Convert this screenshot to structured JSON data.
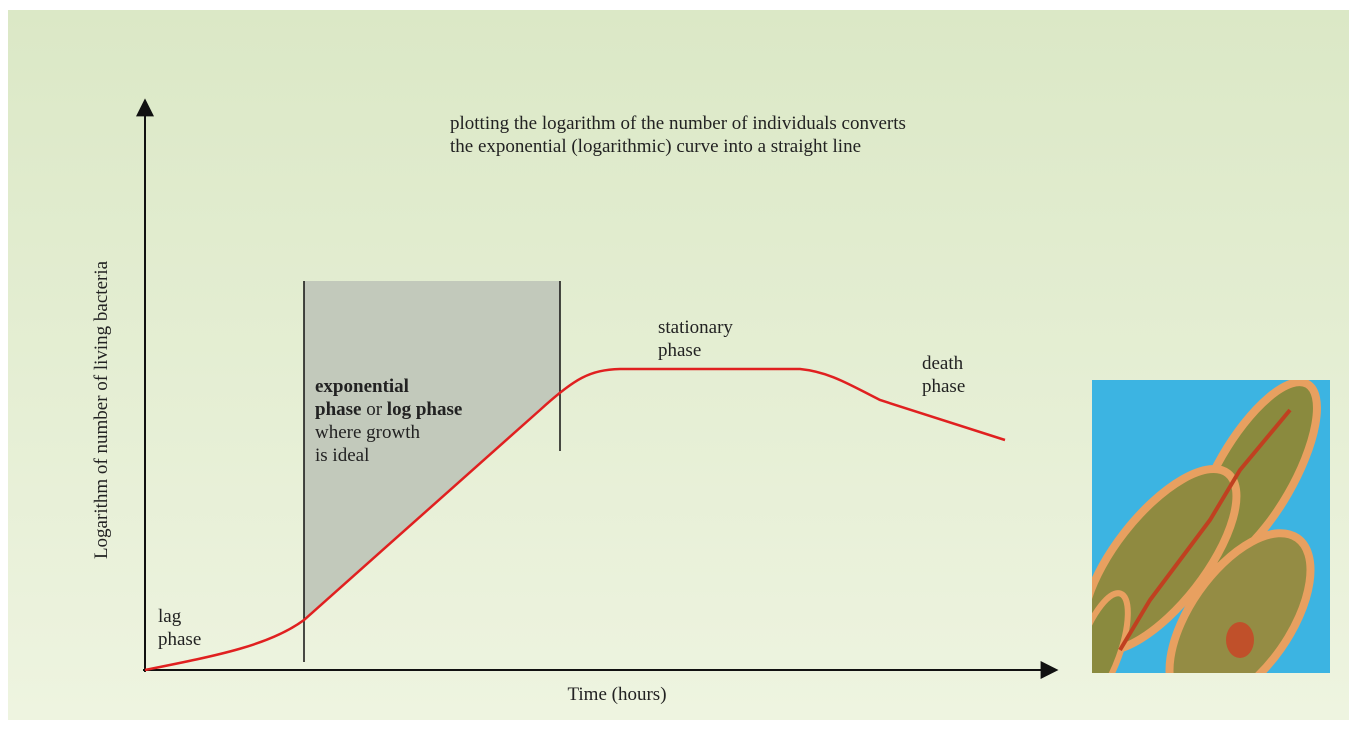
{
  "note": [
    "plotting the logarithm of the number of individuals converts",
    "the exponential (logarithmic) curve into a straight line"
  ],
  "y_axis_label": "Logarithm of number of living bacteria",
  "x_axis_label": "Time (hours)",
  "lag_phase": [
    "lag",
    "phase"
  ],
  "exponential_phase": {
    "lines": [
      [
        {
          "text": "exponential",
          "bold": true
        }
      ],
      [
        {
          "text": "phase",
          "bold": true
        },
        {
          "text": " or ",
          "bold": false
        },
        {
          "text": "log phase",
          "bold": true
        }
      ],
      [
        {
          "text": "where growth",
          "bold": false
        }
      ],
      [
        {
          "text": "is ideal",
          "bold": false
        }
      ]
    ]
  },
  "stationary_phase": [
    "stationary",
    "phase"
  ],
  "death_phase": [
    "death",
    "phase"
  ]
}
